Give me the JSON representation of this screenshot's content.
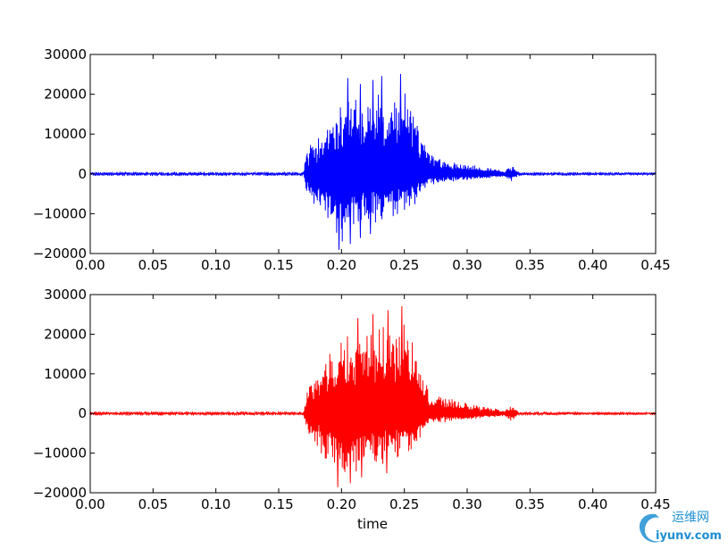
{
  "chart_data": [
    {
      "type": "line",
      "title": "",
      "xlabel": "",
      "ylabel": "",
      "xlim": [
        0.0,
        0.45
      ],
      "ylim": [
        -20000,
        30000
      ],
      "x_ticks": [
        "0.00",
        "0.05",
        "0.10",
        "0.15",
        "0.20",
        "0.25",
        "0.30",
        "0.35",
        "0.40",
        "0.45"
      ],
      "y_ticks": [
        "30000",
        "20000",
        "10000",
        "0",
        "−10000",
        "−20000"
      ],
      "series": [
        {
          "color": "#0000ff",
          "envelope": {
            "x": [
              0.0,
              0.17,
              0.172,
              0.18,
              0.19,
              0.2,
              0.21,
              0.22,
              0.23,
              0.24,
              0.25,
              0.26,
              0.265,
              0.27,
              0.28,
              0.29,
              0.3,
              0.31,
              0.32,
              0.33,
              0.335,
              0.34,
              0.45
            ],
            "max": [
              800,
              800,
              6500,
              11000,
              15000,
              20000,
              22000,
              23000,
              24000,
              25000,
              24000,
              18000,
              10000,
              6000,
              4500,
              3500,
              2800,
              2000,
              1500,
              800,
              2500,
              800,
              600
            ],
            "min": [
              -800,
              -800,
              -5000,
              -10000,
              -14000,
              -19000,
              -18000,
              -15000,
              -13000,
              -12000,
              -11000,
              -9000,
              -6000,
              -3000,
              -2500,
              -2000,
              -1800,
              -1500,
              -1000,
              -700,
              -2300,
              -700,
              -600
            ]
          },
          "peaks": [
            {
              "x": 0.205,
              "y": 24000
            },
            {
              "x": 0.215,
              "y": 22500
            },
            {
              "x": 0.225,
              "y": 23500
            },
            {
              "x": 0.232,
              "y": 24500
            },
            {
              "x": 0.247,
              "y": 25000
            },
            {
              "x": 0.198,
              "y": -19000
            },
            {
              "x": 0.207,
              "y": -17500
            },
            {
              "x": 0.215,
              "y": -16000
            },
            {
              "x": 0.223,
              "y": -15000
            }
          ]
        }
      ]
    },
    {
      "type": "line",
      "title": "",
      "xlabel": "time",
      "ylabel": "",
      "xlim": [
        0.0,
        0.45
      ],
      "ylim": [
        -20000,
        30000
      ],
      "x_ticks": [
        "0.00",
        "0.05",
        "0.10",
        "0.15",
        "0.20",
        "0.25",
        "0.30",
        "0.35",
        "0.40",
        "0.45"
      ],
      "y_ticks": [
        "30000",
        "20000",
        "10000",
        "0",
        "−10000",
        "−20000"
      ],
      "series": [
        {
          "color": "#ff0000",
          "envelope": {
            "x": [
              0.0,
              0.17,
              0.172,
              0.18,
              0.19,
              0.2,
              0.21,
              0.22,
              0.23,
              0.24,
              0.25,
              0.26,
              0.265,
              0.27,
              0.28,
              0.29,
              0.3,
              0.31,
              0.32,
              0.33,
              0.335,
              0.34,
              0.45
            ],
            "max": [
              800,
              800,
              6500,
              11000,
              17000,
              21000,
              23000,
              24500,
              25500,
              26000,
              27000,
              20000,
              11000,
              6000,
              5000,
              4000,
              3000,
              2000,
              1500,
              800,
              2500,
              800,
              600
            ],
            "min": [
              -800,
              -800,
              -5000,
              -11000,
              -15000,
              -18500,
              -17500,
              -16000,
              -15000,
              -13000,
              -12000,
              -9000,
              -6000,
              -3000,
              -2500,
              -2000,
              -1800,
              -1500,
              -1000,
              -700,
              -2300,
              -700,
              -600
            ]
          },
          "peaks": [
            {
              "x": 0.213,
              "y": 24000
            },
            {
              "x": 0.225,
              "y": 25000
            },
            {
              "x": 0.237,
              "y": 26000
            },
            {
              "x": 0.248,
              "y": 27000
            },
            {
              "x": 0.197,
              "y": -18500
            },
            {
              "x": 0.207,
              "y": -17500
            },
            {
              "x": 0.216,
              "y": -16000
            },
            {
              "x": 0.236,
              "y": -15000
            }
          ]
        }
      ]
    }
  ],
  "watermark": {
    "cn_text": "运维网",
    "url_text": "iyunv.com"
  }
}
